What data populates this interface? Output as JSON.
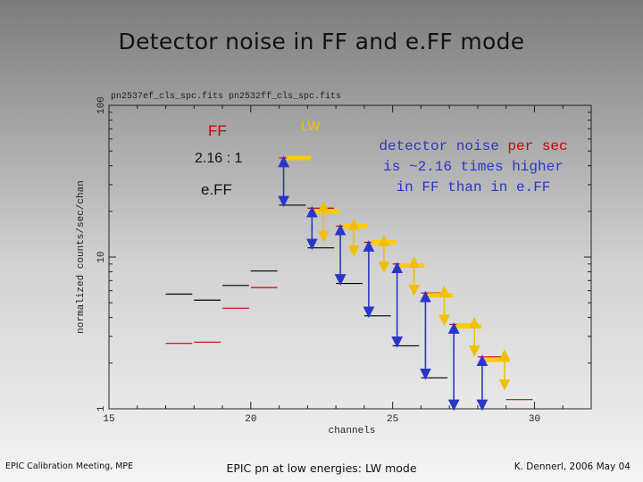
{
  "slide": {
    "title": "Detector noise in FF and e.FF mode",
    "footer_left": "EPIC Calibration Meeting, MPE",
    "footer_center": "EPIC pn at low energies: LW mode",
    "footer_right": "K. Dennerl, 2006 May 04"
  },
  "chart_data": {
    "type": "scatter",
    "title": "pn2537ef_cls_spc.fits pn2532ff_cls_spc.fits",
    "xlabel": "channels",
    "ylabel": "normalized counts/sec/chan",
    "xlim": [
      15,
      32
    ],
    "ylim": [
      1,
      100
    ],
    "yscale": "log",
    "x_ticks": [
      "15",
      "20",
      "25",
      "30"
    ],
    "y_ticks": [
      "1",
      "10",
      "100"
    ],
    "labels": {
      "ff": "FF",
      "ratio": "2.16 : 1",
      "eff": "e.FF",
      "lw": "LW",
      "annotation_line1_a": "detector noise ",
      "annotation_line1_b": "per sec",
      "annotation_line2": "is ~2.16 times higher",
      "annotation_line3": "in FF than in e.FF"
    },
    "colors": {
      "black_series": "#000000",
      "red_series": "#cc0000",
      "lw_series": "#ffcc00",
      "ff_arrow": "#2a36c8",
      "lw_arrow": "#f0c000",
      "emphasis": "#cc0000"
    },
    "series": [
      {
        "name": "black",
        "points": [
          [
            17,
            5.7
          ],
          [
            18,
            5.2
          ],
          [
            19,
            6.5
          ],
          [
            20,
            8.1
          ],
          [
            21,
            22
          ],
          [
            22,
            11.5
          ],
          [
            23,
            6.7
          ],
          [
            24,
            4.1
          ],
          [
            25,
            2.6
          ],
          [
            26,
            1.6
          ],
          [
            27,
            0.95
          ]
        ]
      },
      {
        "name": "red",
        "points": [
          [
            17,
            2.7
          ],
          [
            18,
            2.75
          ],
          [
            19,
            4.6
          ],
          [
            20,
            6.3
          ],
          [
            21,
            45
          ],
          [
            22,
            21
          ],
          [
            23,
            16
          ],
          [
            24,
            12.5
          ],
          [
            25,
            9.0
          ],
          [
            26,
            5.8
          ],
          [
            27,
            3.6
          ],
          [
            28,
            2.2
          ],
          [
            29,
            1.15
          ]
        ]
      },
      {
        "name": "LW",
        "points": [
          [
            21,
            45
          ],
          [
            22,
            20
          ],
          [
            23,
            16
          ],
          [
            24,
            12.5
          ],
          [
            25,
            8.8
          ],
          [
            26,
            5.6
          ],
          [
            27,
            3.5
          ],
          [
            28,
            2.1
          ]
        ]
      }
    ],
    "ff_arrows": [
      [
        21,
        45,
        21,
        22
      ],
      [
        22,
        21,
        22,
        11.5
      ],
      [
        23,
        16,
        23,
        6.7
      ],
      [
        24,
        12.5,
        24,
        4.1
      ],
      [
        25,
        9.0,
        25,
        2.6
      ],
      [
        26,
        5.8,
        26,
        1.6
      ],
      [
        27,
        3.6,
        27,
        0.95
      ],
      [
        28,
        2.2,
        28,
        0.9
      ]
    ],
    "lw_arrows": [
      [
        22,
        21,
        22,
        20
      ],
      [
        23,
        16,
        23,
        16
      ],
      [
        24,
        12.5,
        24,
        12.5
      ],
      [
        25,
        9.0,
        25,
        8.8
      ],
      [
        26,
        5.8,
        26,
        5.6
      ],
      [
        27,
        3.6,
        27,
        3.5
      ],
      [
        28,
        2.2,
        28,
        2.1
      ]
    ]
  }
}
